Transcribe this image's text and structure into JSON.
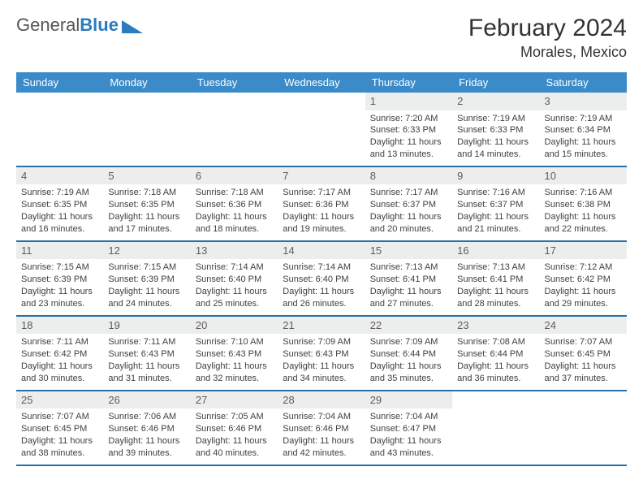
{
  "logo": {
    "text_general": "General",
    "text_blue": "Blue"
  },
  "title": "February 2024",
  "location": "Morales, Mexico",
  "colors": {
    "header_bg": "#3b8bc9",
    "header_text": "#ffffff",
    "daynum_bg": "#eceded",
    "border": "#2d6fa5",
    "logo_blue": "#2b7bbf"
  },
  "weekdays": [
    "Sunday",
    "Monday",
    "Tuesday",
    "Wednesday",
    "Thursday",
    "Friday",
    "Saturday"
  ],
  "weeks": [
    [
      {
        "n": "",
        "sr": "",
        "ss": "",
        "dl": ""
      },
      {
        "n": "",
        "sr": "",
        "ss": "",
        "dl": ""
      },
      {
        "n": "",
        "sr": "",
        "ss": "",
        "dl": ""
      },
      {
        "n": "",
        "sr": "",
        "ss": "",
        "dl": ""
      },
      {
        "n": "1",
        "sr": "Sunrise: 7:20 AM",
        "ss": "Sunset: 6:33 PM",
        "dl": "Daylight: 11 hours and 13 minutes."
      },
      {
        "n": "2",
        "sr": "Sunrise: 7:19 AM",
        "ss": "Sunset: 6:33 PM",
        "dl": "Daylight: 11 hours and 14 minutes."
      },
      {
        "n": "3",
        "sr": "Sunrise: 7:19 AM",
        "ss": "Sunset: 6:34 PM",
        "dl": "Daylight: 11 hours and 15 minutes."
      }
    ],
    [
      {
        "n": "4",
        "sr": "Sunrise: 7:19 AM",
        "ss": "Sunset: 6:35 PM",
        "dl": "Daylight: 11 hours and 16 minutes."
      },
      {
        "n": "5",
        "sr": "Sunrise: 7:18 AM",
        "ss": "Sunset: 6:35 PM",
        "dl": "Daylight: 11 hours and 17 minutes."
      },
      {
        "n": "6",
        "sr": "Sunrise: 7:18 AM",
        "ss": "Sunset: 6:36 PM",
        "dl": "Daylight: 11 hours and 18 minutes."
      },
      {
        "n": "7",
        "sr": "Sunrise: 7:17 AM",
        "ss": "Sunset: 6:36 PM",
        "dl": "Daylight: 11 hours and 19 minutes."
      },
      {
        "n": "8",
        "sr": "Sunrise: 7:17 AM",
        "ss": "Sunset: 6:37 PM",
        "dl": "Daylight: 11 hours and 20 minutes."
      },
      {
        "n": "9",
        "sr": "Sunrise: 7:16 AM",
        "ss": "Sunset: 6:37 PM",
        "dl": "Daylight: 11 hours and 21 minutes."
      },
      {
        "n": "10",
        "sr": "Sunrise: 7:16 AM",
        "ss": "Sunset: 6:38 PM",
        "dl": "Daylight: 11 hours and 22 minutes."
      }
    ],
    [
      {
        "n": "11",
        "sr": "Sunrise: 7:15 AM",
        "ss": "Sunset: 6:39 PM",
        "dl": "Daylight: 11 hours and 23 minutes."
      },
      {
        "n": "12",
        "sr": "Sunrise: 7:15 AM",
        "ss": "Sunset: 6:39 PM",
        "dl": "Daylight: 11 hours and 24 minutes."
      },
      {
        "n": "13",
        "sr": "Sunrise: 7:14 AM",
        "ss": "Sunset: 6:40 PM",
        "dl": "Daylight: 11 hours and 25 minutes."
      },
      {
        "n": "14",
        "sr": "Sunrise: 7:14 AM",
        "ss": "Sunset: 6:40 PM",
        "dl": "Daylight: 11 hours and 26 minutes."
      },
      {
        "n": "15",
        "sr": "Sunrise: 7:13 AM",
        "ss": "Sunset: 6:41 PM",
        "dl": "Daylight: 11 hours and 27 minutes."
      },
      {
        "n": "16",
        "sr": "Sunrise: 7:13 AM",
        "ss": "Sunset: 6:41 PM",
        "dl": "Daylight: 11 hours and 28 minutes."
      },
      {
        "n": "17",
        "sr": "Sunrise: 7:12 AM",
        "ss": "Sunset: 6:42 PM",
        "dl": "Daylight: 11 hours and 29 minutes."
      }
    ],
    [
      {
        "n": "18",
        "sr": "Sunrise: 7:11 AM",
        "ss": "Sunset: 6:42 PM",
        "dl": "Daylight: 11 hours and 30 minutes."
      },
      {
        "n": "19",
        "sr": "Sunrise: 7:11 AM",
        "ss": "Sunset: 6:43 PM",
        "dl": "Daylight: 11 hours and 31 minutes."
      },
      {
        "n": "20",
        "sr": "Sunrise: 7:10 AM",
        "ss": "Sunset: 6:43 PM",
        "dl": "Daylight: 11 hours and 32 minutes."
      },
      {
        "n": "21",
        "sr": "Sunrise: 7:09 AM",
        "ss": "Sunset: 6:43 PM",
        "dl": "Daylight: 11 hours and 34 minutes."
      },
      {
        "n": "22",
        "sr": "Sunrise: 7:09 AM",
        "ss": "Sunset: 6:44 PM",
        "dl": "Daylight: 11 hours and 35 minutes."
      },
      {
        "n": "23",
        "sr": "Sunrise: 7:08 AM",
        "ss": "Sunset: 6:44 PM",
        "dl": "Daylight: 11 hours and 36 minutes."
      },
      {
        "n": "24",
        "sr": "Sunrise: 7:07 AM",
        "ss": "Sunset: 6:45 PM",
        "dl": "Daylight: 11 hours and 37 minutes."
      }
    ],
    [
      {
        "n": "25",
        "sr": "Sunrise: 7:07 AM",
        "ss": "Sunset: 6:45 PM",
        "dl": "Daylight: 11 hours and 38 minutes."
      },
      {
        "n": "26",
        "sr": "Sunrise: 7:06 AM",
        "ss": "Sunset: 6:46 PM",
        "dl": "Daylight: 11 hours and 39 minutes."
      },
      {
        "n": "27",
        "sr": "Sunrise: 7:05 AM",
        "ss": "Sunset: 6:46 PM",
        "dl": "Daylight: 11 hours and 40 minutes."
      },
      {
        "n": "28",
        "sr": "Sunrise: 7:04 AM",
        "ss": "Sunset: 6:46 PM",
        "dl": "Daylight: 11 hours and 42 minutes."
      },
      {
        "n": "29",
        "sr": "Sunrise: 7:04 AM",
        "ss": "Sunset: 6:47 PM",
        "dl": "Daylight: 11 hours and 43 minutes."
      },
      {
        "n": "",
        "sr": "",
        "ss": "",
        "dl": ""
      },
      {
        "n": "",
        "sr": "",
        "ss": "",
        "dl": ""
      }
    ]
  ]
}
